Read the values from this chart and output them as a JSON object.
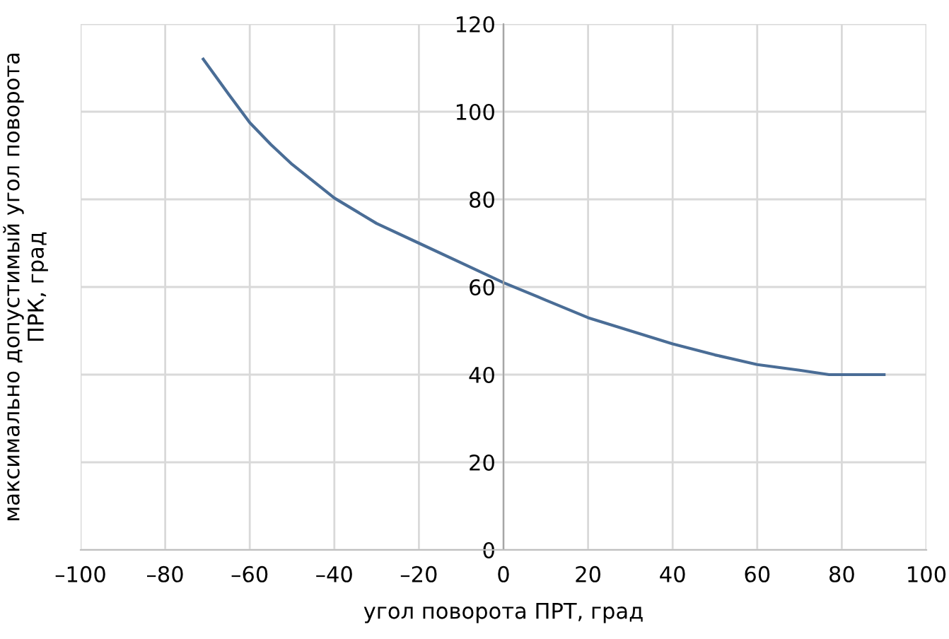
{
  "chart_data": {
    "type": "line",
    "xlabel": "угол поворота ПРТ, град",
    "ylabel": "максимально допустимый угол поворота\nПРК, град",
    "x": [
      -71,
      -65,
      -60,
      -55,
      -50,
      -40,
      -30,
      -20,
      -10,
      0,
      10,
      20,
      30,
      40,
      50,
      60,
      70,
      77,
      90
    ],
    "series": [
      {
        "color": "#4a6d96",
        "values": [
          112,
          104,
          97.5,
          92.5,
          88,
          80.3,
          74.5,
          70,
          65.5,
          61,
          57,
          53,
          50,
          47,
          44.5,
          42.3,
          41,
          40,
          40
        ]
      }
    ],
    "xlim": [
      -100,
      100
    ],
    "xticks": [
      {
        "value": -100,
        "label": "–100"
      },
      {
        "value": -80,
        "label": "–80"
      },
      {
        "value": -60,
        "label": "–60"
      },
      {
        "value": -40,
        "label": "–40"
      },
      {
        "value": -20,
        "label": "–20"
      },
      0,
      20,
      40,
      60,
      80,
      100
    ],
    "ylim": [
      0,
      120
    ],
    "yticks": [
      0,
      20,
      40,
      60,
      80,
      100,
      120
    ],
    "grid": true
  }
}
